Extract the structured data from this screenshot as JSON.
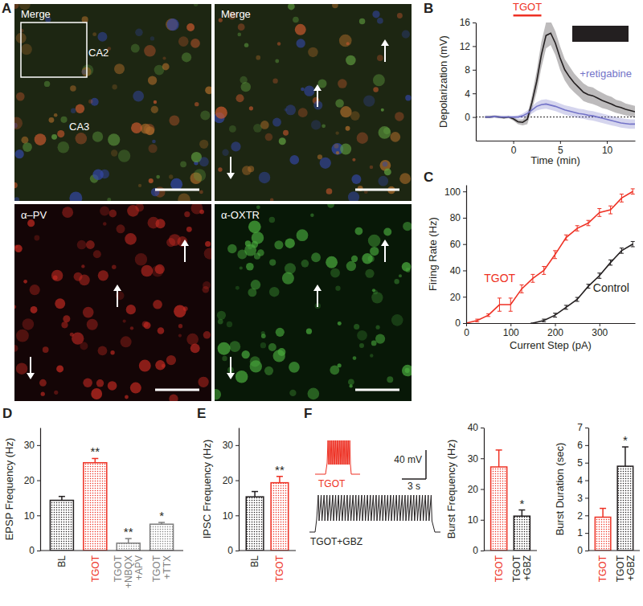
{
  "image_panel": {
    "panel": "A",
    "labels": [
      "Merge",
      "CA2",
      "CA3",
      "Merge",
      "α–PV",
      "α-OXTR"
    ]
  },
  "trace_panel": {
    "panel": "F",
    "labels": [
      "TGOT",
      "TGOT+GBZ"
    ],
    "scale_bar": [
      "40 mV",
      "3 s"
    ]
  },
  "chart_data": [
    {
      "panel": "B",
      "type": "line",
      "x_label": "Time (min)",
      "y_label": "Depolarization (mV)",
      "xlim": [
        -4,
        13
      ],
      "ylim": [
        -4,
        16
      ],
      "xticks": [
        0,
        5,
        10
      ],
      "yticks": [
        0,
        4,
        8,
        12,
        16
      ],
      "baseline": 0,
      "drug_application": {
        "label": "TGOT",
        "start": 0,
        "end": 3
      },
      "x": [
        -3,
        -2.5,
        -2,
        -1.5,
        -1,
        -0.5,
        0,
        0.5,
        1,
        1.5,
        2,
        2.5,
        3,
        3.5,
        4,
        4.5,
        5,
        5.5,
        6,
        6.5,
        7,
        7.5,
        8,
        8.5,
        9,
        9.5,
        10,
        10.5,
        11,
        11.5,
        12,
        12.5,
        13
      ],
      "series": [
        {
          "color": "#231f20",
          "values": [
            0,
            0,
            0.1,
            0,
            -0.1,
            0,
            -0.3,
            -0.8,
            -0.9,
            -0.4,
            2.5,
            6,
            10.5,
            13.8,
            14.2,
            12.5,
            10,
            8,
            6.8,
            5.8,
            5,
            4.2,
            3.8,
            3.6,
            3.2,
            2.8,
            2.5,
            2.2,
            1.8,
            1.6,
            1.3,
            1.1,
            0.9
          ],
          "errors": [
            0.2,
            0.2,
            0.2,
            0.2,
            0.2,
            0.2,
            0.3,
            0.4,
            0.5,
            0.8,
            1.2,
            1.8,
            2.2,
            2.2,
            2,
            2,
            2,
            1.8,
            1.8,
            1.6,
            1.5,
            1.5,
            1.4,
            1.4,
            1.3,
            1.3,
            1.2,
            1.2,
            1.1,
            1.1,
            1,
            1,
            1
          ]
        },
        {
          "name": "+retigabine",
          "color": "#7373c8",
          "values": [
            0,
            0,
            0.1,
            0,
            0,
            0,
            0,
            0,
            0.2,
            0.6,
            1.2,
            1.8,
            2.1,
            2.2,
            2,
            1.8,
            1.5,
            1.2,
            1,
            0.8,
            0.6,
            0.5,
            0.3,
            0.2,
            0,
            -0.2,
            -0.4,
            -0.6,
            -0.8,
            -1,
            -1.1,
            -1.2,
            -1.2
          ],
          "errors": [
            0.2,
            0.2,
            0.2,
            0.2,
            0.2,
            0.2,
            0.2,
            0.3,
            0.4,
            0.5,
            0.6,
            0.7,
            0.8,
            0.8,
            0.8,
            0.8,
            0.8,
            0.8,
            0.8,
            0.8,
            0.8,
            0.8,
            0.8,
            0.8,
            0.8,
            0.8,
            0.8,
            0.8,
            0.8,
            0.8,
            0.8,
            0.8,
            0.8
          ]
        }
      ]
    },
    {
      "panel": "C",
      "type": "line",
      "x_label": "Current Step (pA)",
      "y_label": "Firing Rate (Hz)",
      "xlim": [
        0,
        380
      ],
      "ylim": [
        0,
        105
      ],
      "xticks": [
        0,
        100,
        200,
        300
      ],
      "yticks": [
        0,
        20,
        40,
        60,
        80,
        100
      ],
      "x": [
        0,
        25,
        50,
        75,
        100,
        125,
        150,
        175,
        200,
        225,
        250,
        275,
        300,
        325,
        350,
        375
      ],
      "series": [
        {
          "name": "TGOT",
          "color": "#ee3124",
          "values": [
            0,
            2,
            6,
            14,
            14,
            26,
            34,
            40,
            52,
            65,
            72,
            76,
            84,
            86,
            95,
            100
          ],
          "errors": [
            0,
            1,
            1,
            5,
            5,
            3,
            3,
            3,
            3,
            2,
            2,
            2,
            3,
            3,
            3,
            2
          ]
        },
        {
          "name": "Control",
          "color": "#231f20",
          "values": [
            null,
            null,
            null,
            null,
            null,
            null,
            0,
            2,
            6,
            12,
            18,
            28,
            36,
            46,
            55,
            60
          ],
          "errors": [
            null,
            null,
            null,
            null,
            null,
            null,
            0,
            1,
            1.5,
            1.5,
            1.5,
            1.5,
            2,
            2,
            2,
            2
          ]
        }
      ]
    },
    {
      "panel": "D",
      "type": "bar",
      "y_label": "EPSP Frequency (Hz)",
      "ylim": [
        0,
        35
      ],
      "yticks": [
        0,
        10,
        20,
        30
      ],
      "categories": [
        "BL",
        "TGOT",
        "TGOT+NBQX+APV",
        "TGOT+TTX"
      ],
      "values": [
        14.3,
        25,
        2.1,
        7.5
      ],
      "errors": [
        1.1,
        1.2,
        1.3,
        0.5
      ],
      "significance": [
        null,
        "**",
        "**",
        "*"
      ],
      "colors": [
        "#231f20",
        "#ee3124",
        "#7f7f7f",
        "#7f7f7f"
      ]
    },
    {
      "panel": "E",
      "type": "bar",
      "y_label": "IPSC Frequency (Hz)",
      "ylim": [
        0,
        35
      ],
      "yticks": [
        0,
        10,
        20,
        30
      ],
      "categories": [
        "BL",
        "TGOT"
      ],
      "values": [
        15.3,
        19.3
      ],
      "errors": [
        1.5,
        1.8
      ],
      "significance": [
        null,
        "**"
      ],
      "colors": [
        "#231f20",
        "#ee3124"
      ]
    },
    {
      "type": "bar",
      "y_label": "Burst Frequency (Hz)",
      "ylim": [
        0,
        40
      ],
      "yticks": [
        0,
        10,
        20,
        30,
        40
      ],
      "categories": [
        "TGOT",
        "TGOT+GBZ"
      ],
      "values": [
        27.2,
        11.2
      ],
      "errors": [
        5.5,
        2.0
      ],
      "significance": [
        null,
        "*"
      ],
      "colors": [
        "#ee3124",
        "#231f20"
      ]
    },
    {
      "type": "bar",
      "y_label": "Burst Duration (sec)",
      "ylim": [
        0,
        7
      ],
      "yticks": [
        0,
        1,
        2,
        3,
        4,
        5,
        6,
        7
      ],
      "categories": [
        "TGOT",
        "TGOT+GBZ"
      ],
      "values": [
        1.9,
        4.8
      ],
      "errors": [
        0.5,
        1.1
      ],
      "significance": [
        null,
        "*"
      ],
      "colors": [
        "#ee3124",
        "#231f20"
      ]
    }
  ]
}
